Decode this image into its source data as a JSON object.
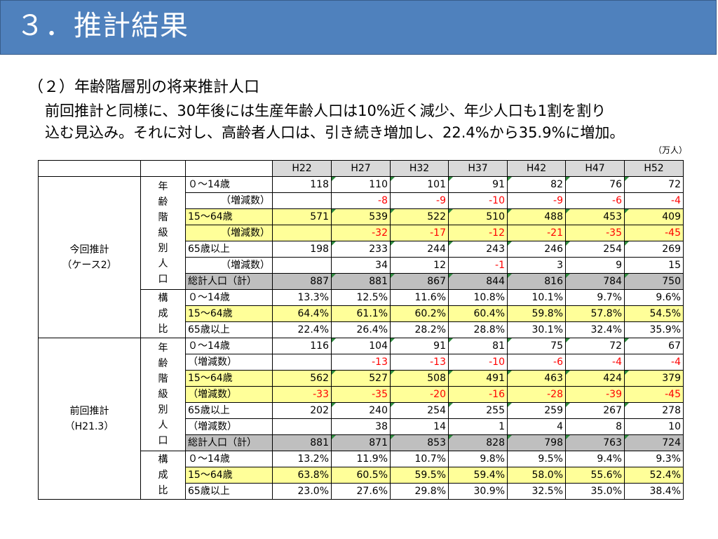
{
  "title": "３．推計結果",
  "subtitle": "（２）年齢階層別の将来推計人口",
  "body_lines": [
    "前回推計と同様に、30年後には生産年齢人口は10%近く減少、年少人口も1割を割り",
    "込む見込み。それに対し、高齢者人口は、引き続き増加し、22.4%から35.9%に増加。"
  ],
  "unit_note": "（万人）",
  "table": {
    "years": [
      "H22",
      "H27",
      "H32",
      "H37",
      "H42",
      "H47",
      "H52"
    ],
    "groups": [
      {
        "name_lines": [
          "今回推計",
          "（ケース2）"
        ],
        "sections": [
          {
            "label_chars": [
              "年",
              "齢",
              "階",
              "級",
              "別",
              "人",
              "口"
            ],
            "rows": [
              {
                "label": "０～14歳",
                "style": "",
                "indent": false,
                "values": [
                  "118",
                  "110",
                  "101",
                  "91",
                  "82",
                  "76",
                  "72"
                ],
                "neg": [
                  false,
                  false,
                  false,
                  false,
                  false,
                  false,
                  false
                ]
              },
              {
                "label": "（増減数）",
                "style": "",
                "indent": true,
                "values": [
                  "",
                  "-8",
                  "-9",
                  "-10",
                  "-9",
                  "-6",
                  "-4"
                ],
                "neg": [
                  false,
                  true,
                  true,
                  true,
                  true,
                  true,
                  true
                ]
              },
              {
                "label": "15～64歳",
                "style": "yellow",
                "indent": false,
                "values": [
                  "571",
                  "539",
                  "522",
                  "510",
                  "488",
                  "453",
                  "409"
                ],
                "neg": [
                  false,
                  false,
                  false,
                  false,
                  false,
                  false,
                  false
                ]
              },
              {
                "label": "（増減数）",
                "style": "yellow",
                "indent": true,
                "values": [
                  "",
                  "-32",
                  "-17",
                  "-12",
                  "-21",
                  "-35",
                  "-45"
                ],
                "neg": [
                  false,
                  true,
                  true,
                  true,
                  true,
                  true,
                  true
                ]
              },
              {
                "label": "65歳以上",
                "style": "",
                "indent": false,
                "values": [
                  "198",
                  "233",
                  "244",
                  "243",
                  "246",
                  "254",
                  "269"
                ],
                "neg": [
                  false,
                  false,
                  false,
                  false,
                  false,
                  false,
                  false
                ]
              },
              {
                "label": "（増減数）",
                "style": "",
                "indent": true,
                "values": [
                  "",
                  "34",
                  "12",
                  "-1",
                  "3",
                  "9",
                  "15"
                ],
                "neg": [
                  false,
                  false,
                  false,
                  true,
                  false,
                  false,
                  false
                ]
              },
              {
                "label": "総計人口（計）",
                "style": "gray",
                "indent": false,
                "values": [
                  "887",
                  "881",
                  "867",
                  "844",
                  "816",
                  "784",
                  "750"
                ],
                "neg": [
                  false,
                  false,
                  false,
                  false,
                  false,
                  false,
                  false
                ]
              }
            ]
          },
          {
            "label_chars": [
              "構",
              "成",
              "比"
            ],
            "rows": [
              {
                "label": "０～14歳",
                "style": "",
                "indent": false,
                "pct": true,
                "values": [
                  "13.3%",
                  "12.5%",
                  "11.6%",
                  "10.8%",
                  "10.1%",
                  "9.7%",
                  "9.6%"
                ],
                "neg": [
                  false,
                  false,
                  false,
                  false,
                  false,
                  false,
                  false
                ]
              },
              {
                "label": "15～64歳",
                "style": "yellow",
                "indent": false,
                "pct": true,
                "values": [
                  "64.4%",
                  "61.1%",
                  "60.2%",
                  "60.4%",
                  "59.8%",
                  "57.8%",
                  "54.5%"
                ],
                "neg": [
                  false,
                  false,
                  false,
                  false,
                  false,
                  false,
                  false
                ]
              },
              {
                "label": "65歳以上",
                "style": "",
                "indent": false,
                "pct": true,
                "values": [
                  "22.4%",
                  "26.4%",
                  "28.2%",
                  "28.8%",
                  "30.1%",
                  "32.4%",
                  "35.9%"
                ],
                "neg": [
                  false,
                  false,
                  false,
                  false,
                  false,
                  false,
                  false
                ]
              }
            ]
          }
        ]
      },
      {
        "name_lines": [
          "前回推計",
          "（H21.3）"
        ],
        "sections": [
          {
            "label_chars": [
              "年",
              "齢",
              "階",
              "級",
              "別",
              "人",
              "口"
            ],
            "rows": [
              {
                "label": "０～14歳",
                "style": "",
                "indent": false,
                "values": [
                  "116",
                  "104",
                  "91",
                  "81",
                  "75",
                  "72",
                  "67"
                ],
                "neg": [
                  false,
                  false,
                  false,
                  false,
                  false,
                  false,
                  false
                ]
              },
              {
                "label": "（増減数）",
                "style": "",
                "indent": false,
                "values": [
                  "",
                  "-13",
                  "-13",
                  "-10",
                  "-6",
                  "-4",
                  "-4"
                ],
                "neg": [
                  false,
                  true,
                  true,
                  true,
                  true,
                  true,
                  true
                ]
              },
              {
                "label": "15～64歳",
                "style": "yellow",
                "indent": false,
                "values": [
                  "562",
                  "527",
                  "508",
                  "491",
                  "463",
                  "424",
                  "379"
                ],
                "neg": [
                  false,
                  false,
                  false,
                  false,
                  false,
                  false,
                  false
                ]
              },
              {
                "label": "（増減数）",
                "style": "yellow",
                "indent": false,
                "values": [
                  "-33",
                  "-35",
                  "-20",
                  "-16",
                  "-28",
                  "-39",
                  "-45"
                ],
                "neg": [
                  true,
                  true,
                  true,
                  true,
                  true,
                  true,
                  true
                ]
              },
              {
                "label": "65歳以上",
                "style": "",
                "indent": false,
                "values": [
                  "202",
                  "240",
                  "254",
                  "255",
                  "259",
                  "267",
                  "278"
                ],
                "neg": [
                  false,
                  false,
                  false,
                  false,
                  false,
                  false,
                  false
                ]
              },
              {
                "label": "（増減数）",
                "style": "",
                "indent": false,
                "values": [
                  "",
                  "38",
                  "14",
                  "1",
                  "4",
                  "8",
                  "10"
                ],
                "neg": [
                  false,
                  false,
                  false,
                  false,
                  false,
                  false,
                  false
                ]
              },
              {
                "label": "総計人口（計）",
                "style": "gray",
                "indent": false,
                "values": [
                  "881",
                  "871",
                  "853",
                  "828",
                  "798",
                  "763",
                  "724"
                ],
                "neg": [
                  false,
                  false,
                  false,
                  false,
                  false,
                  false,
                  false
                ]
              }
            ]
          },
          {
            "label_chars": [
              "構",
              "成",
              "比"
            ],
            "rows": [
              {
                "label": "０～14歳",
                "style": "",
                "indent": false,
                "pct": true,
                "values": [
                  "13.2%",
                  "11.9%",
                  "10.7%",
                  "9.8%",
                  "9.5%",
                  "9.4%",
                  "9.3%"
                ],
                "neg": [
                  false,
                  false,
                  false,
                  false,
                  false,
                  false,
                  false
                ]
              },
              {
                "label": "15～64歳",
                "style": "yellow",
                "indent": false,
                "pct": true,
                "values": [
                  "63.8%",
                  "60.5%",
                  "59.5%",
                  "59.4%",
                  "58.0%",
                  "55.6%",
                  "52.4%"
                ],
                "neg": [
                  false,
                  false,
                  false,
                  false,
                  false,
                  false,
                  false
                ]
              },
              {
                "label": "65歳以上",
                "style": "",
                "indent": false,
                "pct": true,
                "values": [
                  "23.0%",
                  "27.6%",
                  "29.8%",
                  "30.9%",
                  "32.5%",
                  "35.0%",
                  "38.4%"
                ],
                "neg": [
                  false,
                  false,
                  false,
                  false,
                  false,
                  false,
                  false
                ]
              }
            ]
          }
        ]
      }
    ]
  }
}
